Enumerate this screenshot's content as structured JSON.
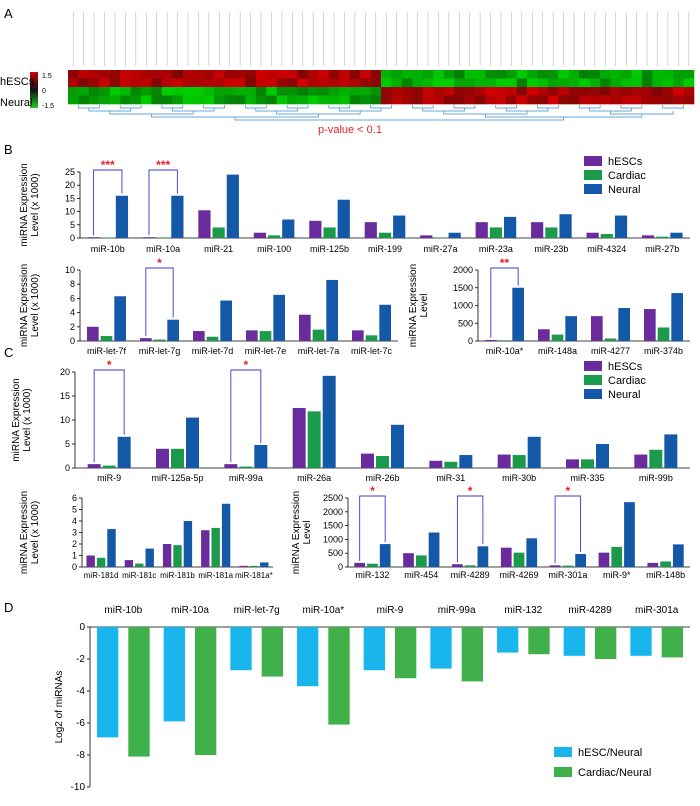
{
  "panels": {
    "A": {
      "letter": "A",
      "row_labels": [
        "hESCs",
        "Neural"
      ],
      "colorbar_ticks": [
        "1.5",
        "0",
        "-1.5"
      ],
      "pvalue_text": "p-value < 0.1"
    },
    "B": {
      "letter": "B"
    },
    "C": {
      "letter": "C"
    },
    "D": {
      "letter": "D"
    }
  },
  "legend_three": [
    "hESCs",
    "Cardiac",
    "Neural"
  ],
  "legend_two": [
    "hESC/Neural",
    "Cardiac/Neural"
  ],
  "colors": {
    "hESCs": "#6a2c9c",
    "Cardiac": "#1a9a4a",
    "Neural": "#1458a8",
    "ratio1": "#19b6ee",
    "ratio2": "#40b04a",
    "significance": "#e8202a",
    "bracket": "#3a3ad0"
  },
  "chart_data": [
    {
      "id": "B1",
      "type": "bar",
      "ylabel": "miRNA Expression Level (x 1000)",
      "ylim": [
        0,
        25
      ],
      "yticks": [
        0,
        5,
        10,
        15,
        20,
        25
      ],
      "categories": [
        "miR-10b",
        "miR-10a",
        "miR-21",
        "miR-100",
        "miR-125b",
        "miR-199",
        "miR-27a",
        "miR-23a",
        "miR-23b",
        "miR-4324",
        "miR-27b"
      ],
      "series": [
        {
          "name": "hESCs",
          "values": [
            0.3,
            0.3,
            10.5,
            2.0,
            6.5,
            6.0,
            1.0,
            6.0,
            6.0,
            2.0,
            1.0
          ]
        },
        {
          "name": "Cardiac",
          "values": [
            0.2,
            0.2,
            4.0,
            1.0,
            4.0,
            2.0,
            0.2,
            4.0,
            4.0,
            1.5,
            0.5
          ]
        },
        {
          "name": "Neural",
          "values": [
            16.0,
            16.0,
            24.0,
            7.0,
            14.5,
            8.5,
            2.0,
            8.0,
            9.0,
            8.5,
            2.0
          ]
        }
      ],
      "significance": [
        {
          "category": "miR-10b",
          "label": "***"
        },
        {
          "category": "miR-10a",
          "label": "***"
        }
      ]
    },
    {
      "id": "B2",
      "type": "bar",
      "ylabel": "miRNA Expression Level (x 1000)",
      "ylim": [
        0,
        10
      ],
      "yticks": [
        0,
        2,
        4,
        6,
        8,
        10
      ],
      "categories": [
        "miR-let-7f",
        "miR-let-7g",
        "miR-let-7d",
        "miR-let-7e",
        "miR-let-7a",
        "miR-let-7c"
      ],
      "series": [
        {
          "name": "hESCs",
          "values": [
            2.0,
            0.4,
            1.4,
            1.5,
            3.7,
            1.5
          ]
        },
        {
          "name": "Cardiac",
          "values": [
            0.7,
            0.2,
            0.6,
            1.4,
            1.6,
            0.8
          ]
        },
        {
          "name": "Neural",
          "values": [
            6.3,
            3.0,
            5.7,
            6.5,
            8.6,
            5.1
          ]
        }
      ],
      "significance": [
        {
          "category": "miR-let-7g",
          "label": "*"
        }
      ]
    },
    {
      "id": "B3",
      "type": "bar",
      "ylabel": "miRNA Expression Level",
      "ylim": [
        0,
        2000
      ],
      "yticks": [
        0,
        500,
        1000,
        1500,
        2000
      ],
      "categories": [
        "miR-10a*",
        "miR-148a",
        "miR-4277",
        "miR-374b"
      ],
      "series": [
        {
          "name": "hESCs",
          "values": [
            30,
            330,
            700,
            900
          ]
        },
        {
          "name": "Cardiac",
          "values": [
            20,
            180,
            70,
            380
          ]
        },
        {
          "name": "Neural",
          "values": [
            1500,
            700,
            930,
            1350
          ]
        }
      ],
      "significance": [
        {
          "category": "miR-10a*",
          "label": "**"
        }
      ]
    },
    {
      "id": "C1",
      "type": "bar",
      "ylabel": "miRNA Expression Level (x 1000)",
      "ylim": [
        0,
        20
      ],
      "yticks": [
        0,
        5,
        10,
        15,
        20
      ],
      "categories": [
        "miR-9",
        "miR-125a-5p",
        "miR-99a",
        "miR-26a",
        "miR-26b",
        "miR-31",
        "miR-30b",
        "miR-335",
        "miR-99b"
      ],
      "series": [
        {
          "name": "hESCs",
          "values": [
            0.8,
            4.0,
            0.8,
            12.5,
            3.0,
            1.5,
            2.8,
            1.8,
            2.8
          ]
        },
        {
          "name": "Cardiac",
          "values": [
            0.5,
            4.0,
            0.3,
            11.8,
            2.5,
            1.3,
            2.7,
            1.8,
            3.8
          ]
        },
        {
          "name": "Neural",
          "values": [
            6.5,
            10.5,
            4.8,
            19.2,
            9.0,
            2.7,
            6.5,
            5.0,
            7.0
          ]
        }
      ],
      "significance": [
        {
          "category": "miR-9",
          "label": "*"
        },
        {
          "category": "miR-99a",
          "label": "*"
        }
      ]
    },
    {
      "id": "C2",
      "type": "bar",
      "ylabel": "miRNA Expression Level (x 1000)",
      "ylim": [
        0,
        6
      ],
      "yticks": [
        0,
        1,
        2,
        3,
        4,
        5,
        6
      ],
      "categories": [
        "miR-181d",
        "miR-181c",
        "miR-181b",
        "miR-181a",
        "miR-181a*"
      ],
      "series": [
        {
          "name": "hESCs",
          "values": [
            1.0,
            0.6,
            2.0,
            3.2,
            0.1
          ]
        },
        {
          "name": "Cardiac",
          "values": [
            0.8,
            0.3,
            1.9,
            3.4,
            0.1
          ]
        },
        {
          "name": "Neural",
          "values": [
            3.3,
            1.6,
            4.0,
            5.5,
            0.4
          ]
        }
      ]
    },
    {
      "id": "C3",
      "type": "bar",
      "ylabel": "miRNA Expression Level",
      "ylim": [
        0,
        2500
      ],
      "yticks": [
        0,
        500,
        1000,
        1500,
        2000,
        2500
      ],
      "categories": [
        "miR-132",
        "miR-454",
        "miR-4289",
        "miR-4269",
        "miR-301a",
        "miR-9*",
        "miR-148b"
      ],
      "series": [
        {
          "name": "hESCs",
          "values": [
            150,
            500,
            100,
            700,
            60,
            520,
            150
          ]
        },
        {
          "name": "Cardiac",
          "values": [
            120,
            420,
            60,
            520,
            50,
            730,
            200
          ]
        },
        {
          "name": "Neural",
          "values": [
            830,
            1250,
            750,
            1040,
            470,
            2350,
            820
          ]
        }
      ],
      "significance": [
        {
          "category": "miR-132",
          "label": "*"
        },
        {
          "category": "miR-4289",
          "label": "*"
        },
        {
          "category": "miR-301a",
          "label": "*"
        }
      ]
    },
    {
      "id": "D",
      "type": "bar",
      "ylabel": "Log2 of miRNAs",
      "ylim": [
        -10,
        0
      ],
      "yticks": [
        0,
        -2,
        -4,
        -6,
        -8,
        -10
      ],
      "categories": [
        "miR-10b",
        "miR-10a",
        "miR-let-7g",
        "miR-10a*",
        "miR-9",
        "miR-99a",
        "miR-132",
        "miR-4289",
        "miR-301a"
      ],
      "series": [
        {
          "name": "hESC/Neural",
          "values": [
            -6.9,
            -5.9,
            -2.7,
            -3.7,
            -2.7,
            -2.6,
            -1.6,
            -1.8,
            -1.8
          ]
        },
        {
          "name": "Cardiac/Neural",
          "values": [
            -8.1,
            -8.0,
            -3.1,
            -6.1,
            -3.2,
            -3.4,
            -1.7,
            -2.0,
            -1.9
          ]
        }
      ]
    }
  ]
}
